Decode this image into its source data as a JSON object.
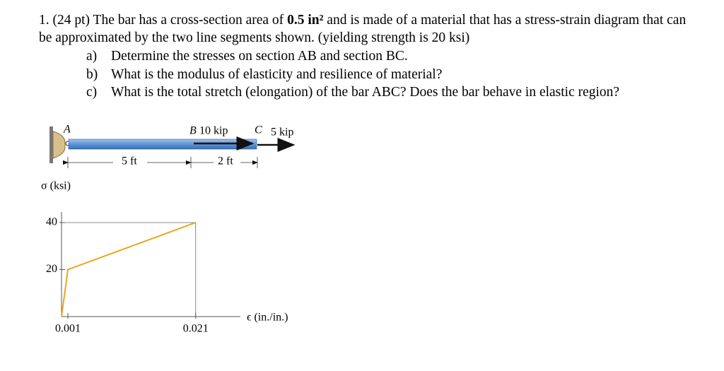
{
  "problem": {
    "intro": "1. (24 pt) The bar has a cross-section area of",
    "area": "0.5 in²",
    "rest": "and is made of a material that has a stress-strain diagram that can be approximated by the two line segments shown. (yielding strength is 20 ksi)",
    "items": [
      {
        "label": "a)",
        "text": "Determine the stresses on section AB and section BC."
      },
      {
        "label": "b)",
        "text": "What is the modulus of elasticity and resilience of material?"
      },
      {
        "label": "c)",
        "text": "What is the total stretch (elongation) of the bar ABC? Does the bar behave in elastic region?"
      }
    ]
  },
  "figure": {
    "point_a": "A",
    "point_b": "B",
    "load_b": "10 kip",
    "point_c": "C",
    "load_c": "5 kip",
    "dim_ab": "5 ft",
    "dim_bc": "2 ft"
  },
  "graph": {
    "y_label": "σ (ksi)",
    "x_label": "ϵ (in./in.)",
    "strain": [
      0,
      0.001,
      0.021
    ],
    "stress": [
      0,
      20,
      40
    ],
    "xlim": [
      0,
      0.028
    ],
    "ylim": [
      0,
      44.5
    ],
    "xticks": [
      0.001,
      0.021
    ],
    "yticks": [
      20,
      40
    ],
    "line_color": "#e6a822"
  }
}
